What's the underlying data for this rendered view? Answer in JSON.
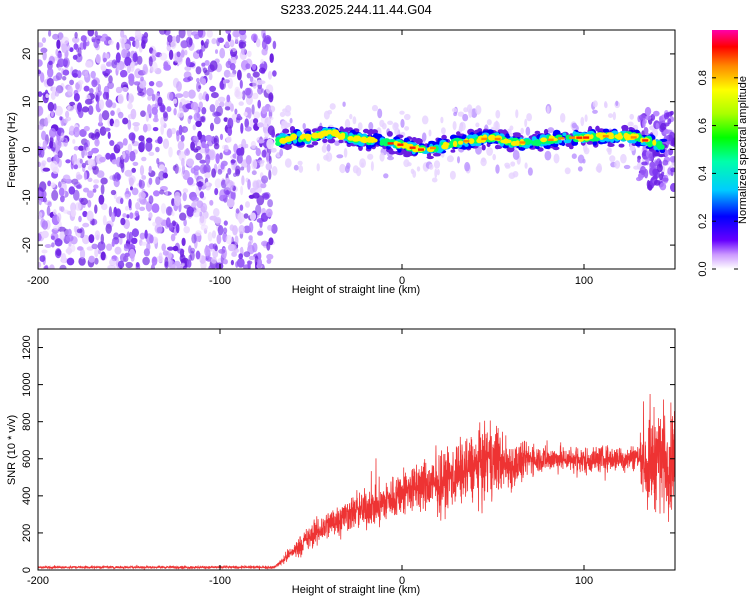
{
  "title": "S233.2025.244.11.44.G04",
  "chart_data": [
    {
      "type": "heatmap",
      "name": "spectrogram",
      "xlabel": "Height of straight line (km)",
      "ylabel": "Frequency (Hz)",
      "xlim": [
        -200,
        150
      ],
      "ylim": [
        -25,
        25
      ],
      "xticks": [
        -200,
        -100,
        0,
        100
      ],
      "yticks": [
        -20,
        -10,
        0,
        10,
        20
      ],
      "noise_region_x": [
        -200,
        -70
      ],
      "signal_region_x": [
        -70,
        150
      ],
      "ridge": {
        "x": [
          -70,
          -60,
          -50,
          -40,
          -35,
          -30,
          -20,
          -10,
          0,
          10,
          20,
          30,
          40,
          50,
          60,
          70,
          80,
          90,
          100,
          110,
          120,
          130,
          140,
          150
        ],
        "y": [
          1.5,
          2.5,
          2.5,
          3.5,
          3.2,
          2.5,
          2.0,
          1.5,
          1.0,
          0.0,
          0.5,
          1.5,
          2.0,
          2.5,
          1.5,
          1.5,
          2.0,
          2.5,
          2.5,
          2.8,
          2.8,
          2.5,
          1.0,
          0.0
        ]
      },
      "colorbar": {
        "label": "Normalized spectral amplitude",
        "range": [
          0,
          1
        ],
        "ticks": [
          "0.0",
          "0.2",
          "0.4",
          "0.6",
          "0.8"
        ]
      }
    },
    {
      "type": "line",
      "name": "snr",
      "xlabel": "Height of straight line (km)",
      "ylabel": "SNR (10 * v/v)",
      "xlim": [
        -200,
        150
      ],
      "ylim": [
        0,
        1300
      ],
      "xticks": [
        -200,
        -100,
        0,
        100
      ],
      "yticks": [
        0,
        200,
        400,
        600,
        800,
        1000,
        1200
      ],
      "color": "#ee3333",
      "envelope": {
        "x": [
          -200,
          -70,
          -60,
          -50,
          -40,
          -30,
          -20,
          -10,
          0,
          10,
          20,
          30,
          40,
          50,
          60,
          70,
          80,
          90,
          100,
          110,
          120,
          130,
          135,
          140,
          145,
          150
        ],
        "mean": [
          15,
          15,
          100,
          180,
          250,
          300,
          330,
          360,
          420,
          450,
          460,
          520,
          560,
          600,
          560,
          600,
          600,
          600,
          590,
          600,
          600,
          610,
          560,
          620,
          600,
          600
        ],
        "spread": [
          10,
          10,
          60,
          100,
          120,
          130,
          150,
          170,
          180,
          200,
          230,
          250,
          260,
          280,
          200,
          120,
          100,
          100,
          110,
          100,
          100,
          100,
          350,
          400,
          400,
          400
        ]
      }
    }
  ]
}
